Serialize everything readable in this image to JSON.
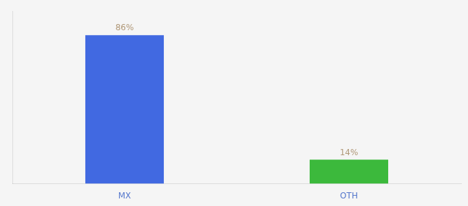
{
  "chart_data": {
    "type": "bar",
    "categories": [
      "MX",
      "OTH"
    ],
    "values": [
      86,
      14
    ],
    "value_labels": [
      "86%",
      "14%"
    ],
    "colors": [
      "#4169E1",
      "#3CB93C"
    ],
    "ylim": [
      0,
      100
    ],
    "grid": false,
    "data_labels": true,
    "tick_labels": "x"
  }
}
